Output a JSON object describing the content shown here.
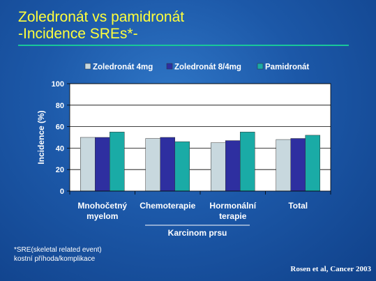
{
  "slide": {
    "title_line1": "Zoledronát vs pamidronát",
    "title_line2": "-Incidence  SREs*-",
    "footnote_line1": "*SRE(skeletal related event)",
    "footnote_line2": "kostní příhoda/komplikace",
    "source": "Rosen et al, Cancer 2003",
    "group_label": "Karcinom prsu"
  },
  "colors": {
    "title": "#ffff3c",
    "rule": "#19c79a",
    "series": [
      "#c8d8de",
      "#2e2fa0",
      "#1aaba6"
    ]
  },
  "chart_data": {
    "type": "bar",
    "categories": [
      [
        "Mnohočetný",
        "myelom"
      ],
      [
        "Chemoterapie"
      ],
      [
        "Hormonální",
        "terapie"
      ],
      [
        "Total"
      ]
    ],
    "series": [
      {
        "name": "Zoledronát 4mg",
        "values": [
          50,
          49,
          45,
          48
        ]
      },
      {
        "name": "Zoledronát 8/4mg",
        "values": [
          50,
          50,
          47,
          49
        ]
      },
      {
        "name": "Pamidronát",
        "values": [
          55,
          46,
          55,
          52
        ]
      }
    ],
    "ylabel": "Incidence (%)",
    "xlabel": "",
    "ylim": [
      0,
      100
    ],
    "yticks": [
      0,
      20,
      40,
      60,
      80,
      100
    ],
    "grid": true,
    "legend": "top"
  }
}
